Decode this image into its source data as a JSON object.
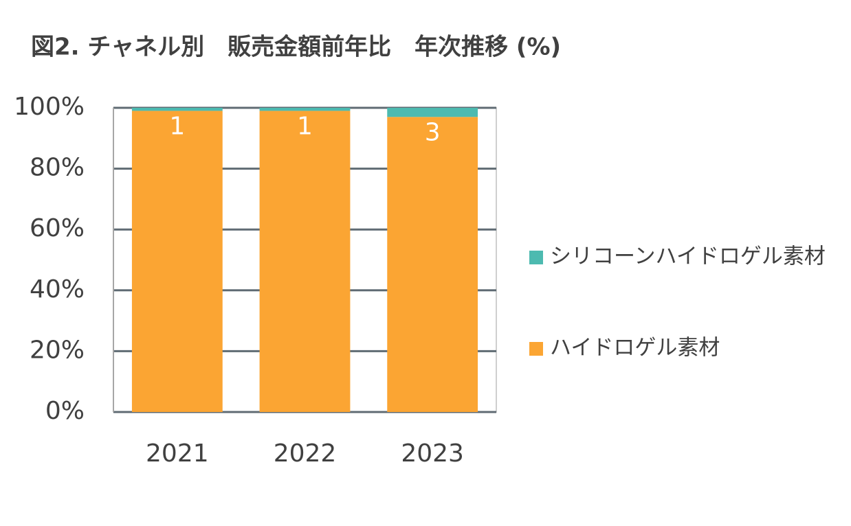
{
  "chart_data": {
    "type": "bar",
    "stacked": true,
    "title": "図2. チャネル別　販売金額前年比　年次推移 (%)",
    "categories": [
      "2021",
      "2022",
      "2023"
    ],
    "series": [
      {
        "name": "シリコーンハイドロゲル素材",
        "color": "#4dbab0",
        "values": [
          1,
          1,
          3
        ],
        "data_labels": true
      },
      {
        "name": "ハイドロゲル素材",
        "color": "#fba533",
        "values": [
          99,
          99,
          97
        ]
      }
    ],
    "ylim": [
      0,
      100
    ],
    "yticks": [
      {
        "value": 0,
        "label": "0%"
      },
      {
        "value": 20,
        "label": "20%"
      },
      {
        "value": 40,
        "label": "40%"
      },
      {
        "value": 60,
        "label": "60%"
      },
      {
        "value": 80,
        "label": "80%"
      },
      {
        "value": 100,
        "label": "100%"
      }
    ],
    "grid": true,
    "legend": "right"
  }
}
